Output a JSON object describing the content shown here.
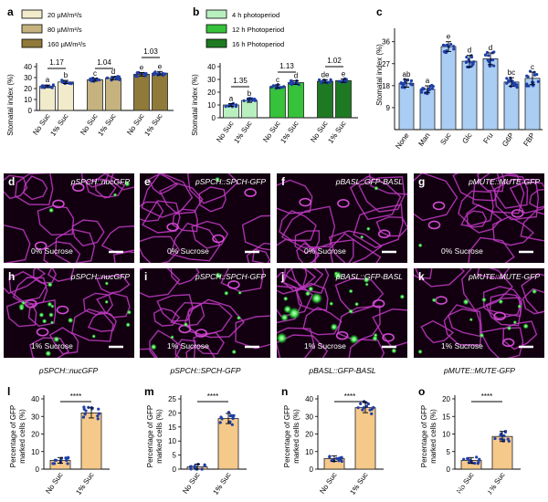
{
  "panels": {
    "a": {
      "letter": "a",
      "ylabel": "Stomatal index (%)",
      "ticks": [
        "0",
        "10",
        "20",
        "30",
        "40"
      ],
      "legend": [
        "20 µM/m²/s",
        "80 µM/m²/s",
        "160 µM/m²/s"
      ],
      "legend_colors": [
        "#f2ebcb",
        "#c5b27f",
        "#8f7a3a"
      ],
      "ratios": [
        "1.17",
        "1.04",
        "1.03"
      ],
      "letters": [
        "a",
        "b",
        "c",
        "d",
        "e",
        "e"
      ],
      "xlabels": [
        "No Suc",
        "1% Suc",
        "No Suc",
        "1% Suc",
        "No Suc",
        "1% Suc"
      ]
    },
    "b": {
      "letter": "b",
      "ylabel": "Stomatal index (%)",
      "ticks": [
        "0",
        "10",
        "20",
        "30",
        "40"
      ],
      "legend": [
        "4 h photoperiod",
        "12 h Photoperiod",
        "16 h Photoperiod"
      ],
      "legend_colors": [
        "#b9efbf",
        "#36c23a",
        "#1e7a22"
      ],
      "ratios": [
        "1.35",
        "1.13",
        "1.02"
      ],
      "letters": [
        "a",
        "b",
        "c",
        "d",
        "de",
        "e"
      ],
      "xlabels": [
        "No Suc",
        "1% Suc",
        "No Suc",
        "1% Suc",
        "No Suc",
        "1% Suc"
      ]
    },
    "c": {
      "letter": "c",
      "ylabel": "Stomatal index (%)",
      "ticks": [
        "9",
        "18",
        "27",
        "36"
      ],
      "letters": [
        "ab",
        "a",
        "e",
        "d",
        "d",
        "bc",
        "c"
      ],
      "top_value": "36",
      "xlabels": [
        "None",
        "Man",
        "Suc",
        "Glc",
        "Fru",
        "G6P",
        "FBP"
      ]
    },
    "images": [
      {
        "letter": "d",
        "title": "pSPCH::nucGFP",
        "cond": "0% Sucrose"
      },
      {
        "letter": "e",
        "title": "pSPCH::SPCH-GFP",
        "cond": "0% Sucrose"
      },
      {
        "letter": "f",
        "title": "pBASL::GFP-BASL",
        "cond": "0% Sucrose"
      },
      {
        "letter": "g",
        "title": "pMUTE::MUTE-GFP",
        "cond": "0% Sucrose"
      },
      {
        "letter": "h",
        "title": "pSPCH::nucGFP",
        "cond": "1% Sucrose"
      },
      {
        "letter": "i",
        "title": "pSPCH::SPCH-GFP",
        "cond": "1% Sucrose"
      },
      {
        "letter": "j",
        "title": "pBASL::GFP-BASL",
        "cond": "1% Sucrose"
      },
      {
        "letter": "k",
        "title": "pMUTE::MUTE-GFP",
        "cond": "1% Sucrose"
      }
    ],
    "captions": [
      "pSPCH::nucGFP",
      "pSPCH::SPCH-GFP",
      "pBASL::GFP-BASL",
      "pMUTE::MUTE-GFP"
    ],
    "bottom": [
      {
        "letter": "l",
        "ticks": [
          "0",
          "10",
          "20",
          "30",
          "40"
        ],
        "sig": "****"
      },
      {
        "letter": "m",
        "ticks": [
          "0",
          "5",
          "10",
          "15",
          "20",
          "25"
        ],
        "sig": "****"
      },
      {
        "letter": "n",
        "ticks": [
          "0",
          "10",
          "20",
          "30",
          "40"
        ],
        "sig": "****"
      },
      {
        "letter": "o",
        "ticks": [
          "0",
          "5",
          "10",
          "15",
          "20"
        ],
        "sig": "****"
      }
    ],
    "bottom_ylabel_1": "Percentage of GFP",
    "bottom_ylabel_2": "marked cells (%)",
    "bottom_xlabels": [
      "No Suc",
      "1% Suc"
    ],
    "watermark": "知乎 @wuhanum"
  },
  "chart_data": [
    {
      "type": "bar",
      "panel": "a",
      "title": "",
      "ylabel": "Stomatal index (%)",
      "ylim": [
        0,
        40
      ],
      "categories": [
        "No Suc",
        "1% Suc",
        "No Suc",
        "1% Suc",
        "No Suc",
        "1% Suc"
      ],
      "groups": [
        "20 µM/m²/s",
        "20 µM/m²/s",
        "80 µM/m²/s",
        "80 µM/m²/s",
        "160 µM/m²/s",
        "160 µM/m²/s"
      ],
      "values": [
        22,
        26,
        28,
        29.5,
        33,
        34
      ]
    },
    {
      "type": "bar",
      "panel": "b",
      "title": "",
      "ylabel": "Stomatal index (%)",
      "ylim": [
        0,
        40
      ],
      "categories": [
        "No Suc",
        "1% Suc",
        "No Suc",
        "1% Suc",
        "No Suc",
        "1% Suc"
      ],
      "groups": [
        "4 h photoperiod",
        "4 h photoperiod",
        "12 h Photoperiod",
        "12 h Photoperiod",
        "16 h Photoperiod",
        "16 h Photoperiod"
      ],
      "values": [
        10,
        13.5,
        24.5,
        27.5,
        28.5,
        29
      ]
    },
    {
      "type": "bar",
      "panel": "c",
      "title": "",
      "ylabel": "Stomatal index (%)",
      "ylim": [
        0,
        40
      ],
      "categories": [
        "None",
        "Man",
        "Suc",
        "Glc",
        "Fru",
        "G6P",
        "FBP"
      ],
      "values": [
        19,
        16.5,
        34,
        28,
        29,
        19.5,
        21
      ]
    },
    {
      "type": "bar",
      "panel": "l",
      "ylabel": "Percentage of GFP marked cells (%)",
      "ylim": [
        0,
        40
      ],
      "categories": [
        "No Suc",
        "1% Suc"
      ],
      "values": [
        5,
        32
      ]
    },
    {
      "type": "bar",
      "panel": "m",
      "ylabel": "Percentage of GFP marked cells (%)",
      "ylim": [
        0,
        25
      ],
      "categories": [
        "No Suc",
        "1% Suc"
      ],
      "values": [
        0.8,
        18
      ]
    },
    {
      "type": "bar",
      "panel": "n",
      "ylabel": "Percentage of GFP marked cells (%)",
      "ylim": [
        0,
        40
      ],
      "categories": [
        "No Suc",
        "1% Suc"
      ],
      "values": [
        6,
        35
      ]
    },
    {
      "type": "bar",
      "panel": "o",
      "ylabel": "Percentage of GFP marked cells (%)",
      "ylim": [
        0,
        20
      ],
      "categories": [
        "No Suc",
        "1% Suc"
      ],
      "values": [
        2.5,
        9.3
      ]
    }
  ]
}
